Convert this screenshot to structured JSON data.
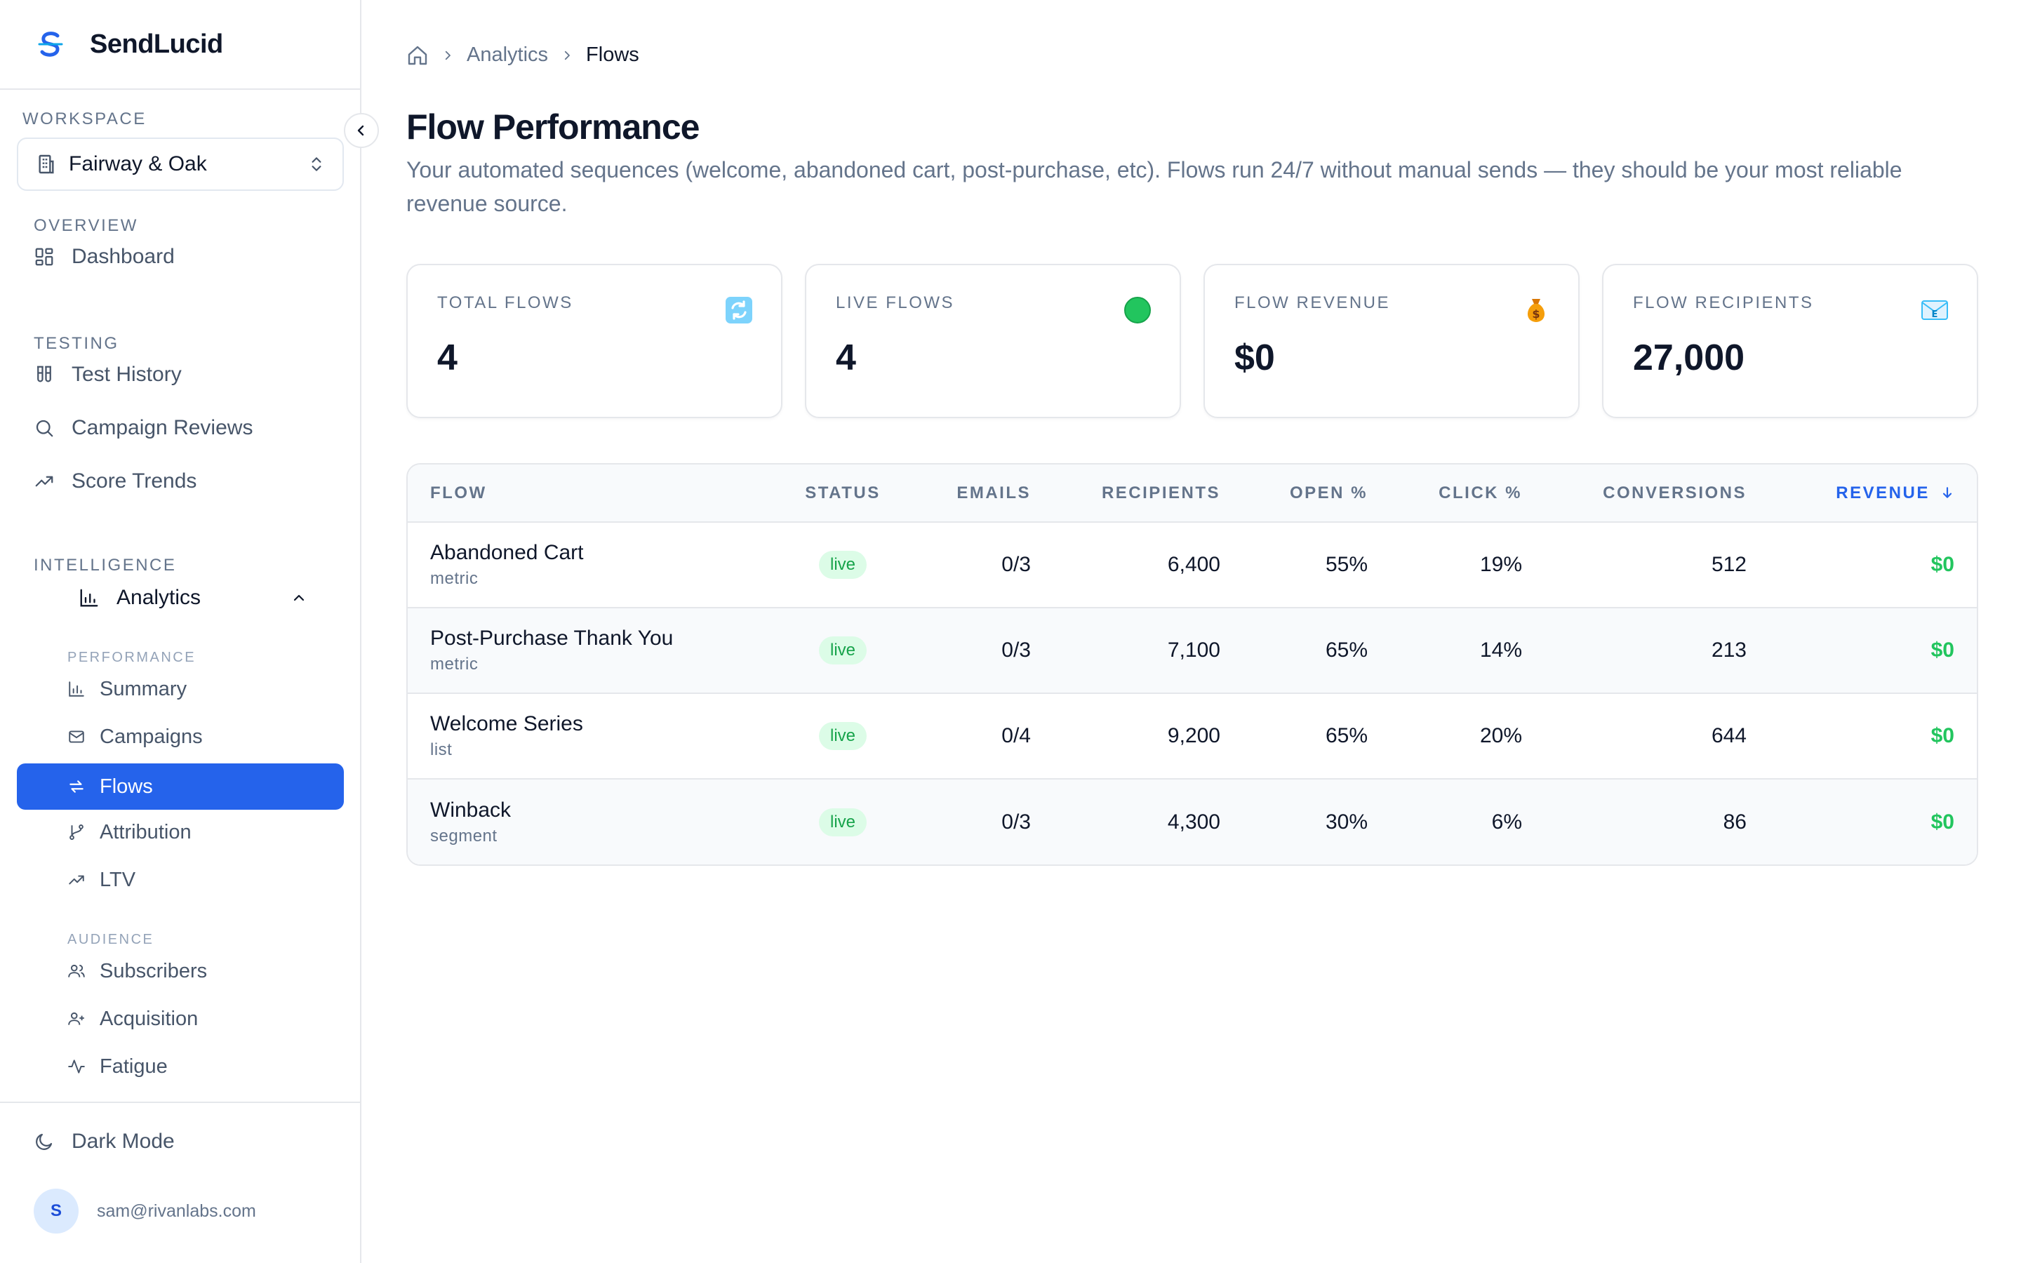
{
  "brand": {
    "name": "SendLucid"
  },
  "sidebar": {
    "workspace_label": "WORKSPACE",
    "workspace_name": "Fairway & Oak",
    "overview_label": "OVERVIEW",
    "dashboard": "Dashboard",
    "testing_label": "TESTING",
    "test_history": "Test History",
    "campaign_reviews": "Campaign Reviews",
    "score_trends": "Score Trends",
    "intelligence_label": "INTELLIGENCE",
    "analytics": "Analytics",
    "performance_label": "PERFORMANCE",
    "summary": "Summary",
    "campaigns": "Campaigns",
    "flows": "Flows",
    "attribution": "Attribution",
    "ltv": "LTV",
    "audience_label": "AUDIENCE",
    "subscribers": "Subscribers",
    "acquisition": "Acquisition",
    "fatigue": "Fatigue",
    "dark_mode": "Dark Mode",
    "user_initial": "S",
    "user_email": "sam@rivanlabs.com"
  },
  "breadcrumb": {
    "parent": "Analytics",
    "current": "Flows"
  },
  "page": {
    "title": "Flow Performance",
    "description": "Your automated sequences (welcome, abandoned cart, post-purchase, etc). Flows run 24/7 without manual sends — they should be your most reliable revenue source."
  },
  "kpis": [
    {
      "label": "TOTAL FLOWS",
      "value": "4",
      "icon": "cycle-arrows-icon"
    },
    {
      "label": "LIVE FLOWS",
      "value": "4",
      "icon": "green-dot-icon"
    },
    {
      "label": "FLOW REVENUE",
      "value": "$0",
      "icon": "money-bag-icon"
    },
    {
      "label": "FLOW RECIPIENTS",
      "value": "27,000",
      "icon": "email-icon"
    }
  ],
  "table": {
    "headers": {
      "flow": "FLOW",
      "status": "STATUS",
      "emails": "EMAILS",
      "recipients": "RECIPIENTS",
      "open": "OPEN %",
      "click": "CLICK %",
      "conversions": "CONVERSIONS",
      "revenue": "REVENUE"
    },
    "rows": [
      {
        "name": "Abandoned Cart",
        "trigger": "metric",
        "status": "live",
        "emails": "0/3",
        "recipients": "6,400",
        "open": "55%",
        "click": "19%",
        "conversions": "512",
        "revenue": "$0"
      },
      {
        "name": "Post-Purchase Thank You",
        "trigger": "metric",
        "status": "live",
        "emails": "0/3",
        "recipients": "7,100",
        "open": "65%",
        "click": "14%",
        "conversions": "213",
        "revenue": "$0"
      },
      {
        "name": "Welcome Series",
        "trigger": "list",
        "status": "live",
        "emails": "0/4",
        "recipients": "9,200",
        "open": "65%",
        "click": "20%",
        "conversions": "644",
        "revenue": "$0"
      },
      {
        "name": "Winback",
        "trigger": "segment",
        "status": "live",
        "emails": "0/3",
        "recipients": "4,300",
        "open": "30%",
        "click": "6%",
        "conversions": "86",
        "revenue": "$0"
      }
    ]
  },
  "colors": {
    "accent": "#2563eb",
    "success": "#22c55e",
    "muted": "#64748b"
  }
}
